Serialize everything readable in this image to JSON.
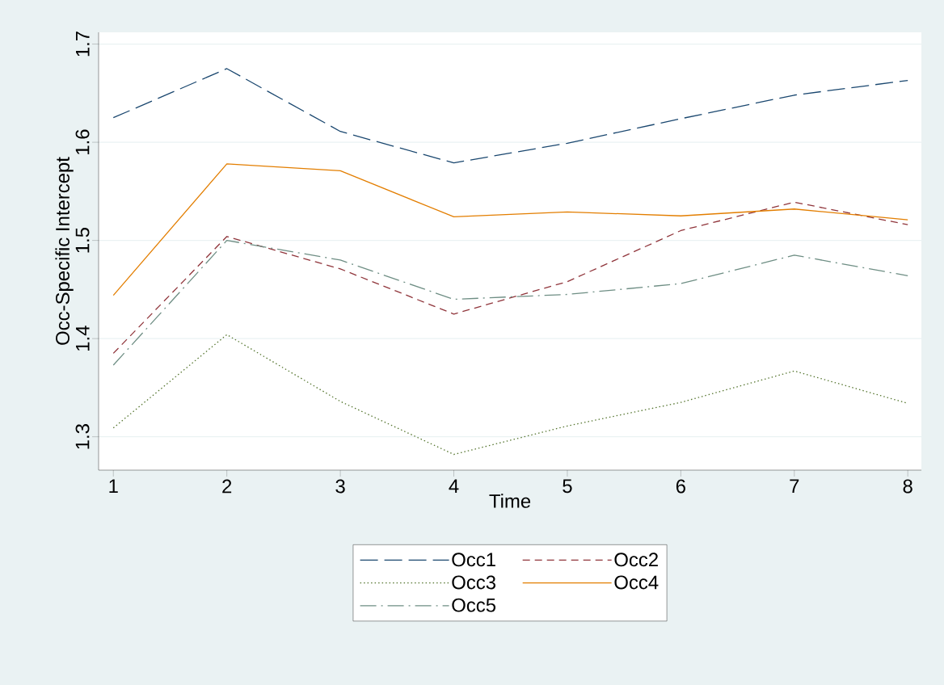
{
  "chart_data": {
    "type": "line",
    "xlabel": "Time",
    "ylabel": "Occ-Specific Intercept",
    "x": [
      1,
      2,
      3,
      4,
      5,
      6,
      7,
      8
    ],
    "series": [
      {
        "name": "Occ1",
        "color": "#1a476f",
        "line_style": "longdashed",
        "values": [
          1.625,
          1.675,
          1.611,
          1.579,
          1.599,
          1.624,
          1.648,
          1.663
        ]
      },
      {
        "name": "Occ2",
        "color": "#90353b",
        "line_style": "dashed",
        "values": [
          1.385,
          1.504,
          1.471,
          1.425,
          1.458,
          1.51,
          1.539,
          1.516
        ]
      },
      {
        "name": "Occ3",
        "color": "#55752f",
        "line_style": "dotted",
        "values": [
          1.309,
          1.404,
          1.336,
          1.282,
          1.311,
          1.335,
          1.367,
          1.334
        ]
      },
      {
        "name": "Occ4",
        "color": "#e37e00",
        "line_style": "solid",
        "values": [
          1.444,
          1.578,
          1.571,
          1.524,
          1.529,
          1.525,
          1.532,
          1.521
        ]
      },
      {
        "name": "Occ5",
        "color": "#6e8e84",
        "line_style": "dashdot",
        "values": [
          1.373,
          1.5,
          1.48,
          1.44,
          1.445,
          1.456,
          1.485,
          1.464
        ]
      }
    ],
    "xlim": [
      0.87,
      8.12
    ],
    "ylim": [
      1.266,
      1.712
    ],
    "xticks": [
      1,
      2,
      3,
      4,
      5,
      6,
      7,
      8
    ],
    "yticks": [
      1.3,
      1.4,
      1.5,
      1.6,
      1.7
    ],
    "grid": "y",
    "legend": "bottom",
    "marker": "none"
  }
}
